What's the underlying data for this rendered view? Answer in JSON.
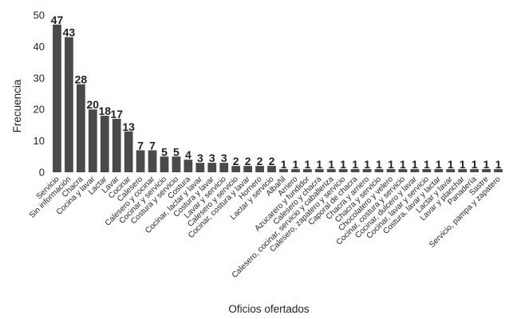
{
  "chart_data": {
    "type": "bar",
    "title": "",
    "xlabel": "Oficios ofertados",
    "ylabel": "Frecuencia",
    "ylim": [
      0,
      50
    ],
    "yticks": [
      0,
      10,
      20,
      30,
      40,
      50
    ],
    "grid": false,
    "legend": "none",
    "bar_color": "#4a4a4a",
    "categories": [
      "Servicio",
      "Sin información",
      "Chacra",
      "Cocina y lavar",
      "Lactar",
      "Lavar",
      "Cocinar",
      "Calesero",
      "Calesero y cocinar",
      "Cocinar y servicio",
      "Costura y servicio",
      "Costura",
      "Cocinar, lactar y lavar",
      "Costura y lavar",
      "Lavar y servicio",
      "Calesero y servicio",
      "Cocinar, costura y lavar",
      "Hornero",
      "Lactar y servicio",
      "Albañil",
      "Arriero",
      "Azucarero y fundidor",
      "Calesero y chacra",
      "Calesero, cocinar, servicio y caballeriza",
      "Calesero, zapatero y servicio",
      "Caporal de chacra",
      "Chacra y arriero",
      "Chacra y servicio",
      "Chocolatero y velero",
      "Cocinar, costura y servicio",
      "Cocinar, dulcero y lavar",
      "Cocinar, lavar y servicio",
      "Costura, lavar y lactar",
      "Lactar y lavar",
      "Lavar y planchar",
      "Panadería",
      "Sastre",
      "Servicio, pampa y zapatero"
    ],
    "values": [
      47,
      43,
      28,
      20,
      18,
      17,
      13,
      7,
      7,
      5,
      5,
      4,
      3,
      3,
      3,
      2,
      2,
      2,
      2,
      1,
      1,
      1,
      1,
      1,
      1,
      1,
      1,
      1,
      1,
      1,
      1,
      1,
      1,
      1,
      1,
      1,
      1,
      1
    ]
  }
}
